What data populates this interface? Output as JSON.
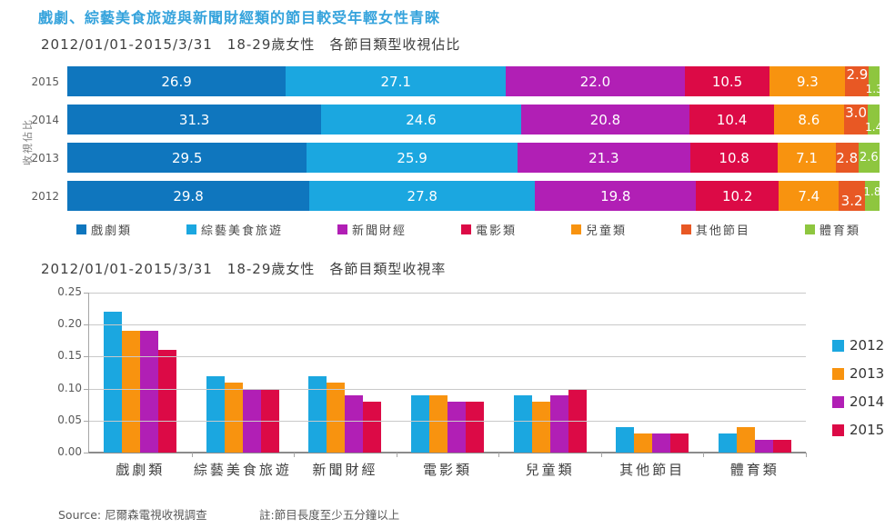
{
  "page": {
    "title": "戲劇、綜藝美食旅遊與新聞財經類的節目較受年輕女性青睞",
    "footer": {
      "source": "Source: 尼爾森電視收視調查",
      "note": "註:節目長度至少五分鐘以上"
    }
  },
  "chart_data": [
    {
      "type": "bar",
      "variant": "horizontal-stacked-100pct",
      "title": "2012/01/01-2015/3/31　18-29歲女性　各節目類型收視佔比",
      "ylabel": "收視佔比",
      "value_unit": "percent",
      "categories": [
        "戲劇類",
        "綜藝美食旅遊",
        "新聞財經",
        "電影類",
        "兒童類",
        "其他節目",
        "體育類"
      ],
      "colors": [
        "#0f76be",
        "#1ba7e0",
        "#b11fb5",
        "#dc0a46",
        "#f8930f",
        "#e85824",
        "#8ec63f"
      ],
      "rows": [
        {
          "year": "2015",
          "values": [
            26.9,
            27.1,
            22.0,
            10.5,
            9.3,
            2.9,
            1.3
          ]
        },
        {
          "year": "2014",
          "values": [
            31.3,
            24.6,
            20.8,
            10.4,
            8.6,
            3.0,
            1.4
          ]
        },
        {
          "year": "2013",
          "values": [
            29.5,
            25.9,
            21.3,
            10.8,
            7.1,
            2.8,
            2.6
          ]
        },
        {
          "year": "2012",
          "values": [
            29.8,
            27.8,
            19.8,
            10.2,
            7.4,
            3.2,
            1.8
          ]
        }
      ],
      "legend_position": "bottom",
      "grid": false
    },
    {
      "type": "bar",
      "variant": "grouped-vertical",
      "title": "2012/01/01-2015/3/31　18-29歲女性　各節目類型收視率",
      "categories": [
        "戲劇類",
        "綜藝美食旅遊",
        "新聞財經",
        "電影類",
        "兒童類",
        "其他節目",
        "體育類"
      ],
      "series": [
        {
          "name": "2012",
          "color": "#1ba7e0",
          "values": [
            0.22,
            0.12,
            0.12,
            0.09,
            0.09,
            0.04,
            0.03
          ]
        },
        {
          "name": "2013",
          "color": "#f8930f",
          "values": [
            0.19,
            0.11,
            0.11,
            0.09,
            0.08,
            0.03,
            0.04
          ]
        },
        {
          "name": "2014",
          "color": "#b11fb5",
          "values": [
            0.19,
            0.1,
            0.09,
            0.08,
            0.09,
            0.03,
            0.02
          ]
        },
        {
          "name": "2015",
          "color": "#dc0a46",
          "values": [
            0.16,
            0.1,
            0.08,
            0.08,
            0.1,
            0.03,
            0.02
          ]
        }
      ],
      "ylim": [
        0,
        0.25
      ],
      "yticks": [
        0,
        0.05,
        0.1,
        0.15,
        0.2,
        0.25
      ],
      "ytick_format": "2dp",
      "grid": true,
      "legend_position": "right"
    }
  ]
}
